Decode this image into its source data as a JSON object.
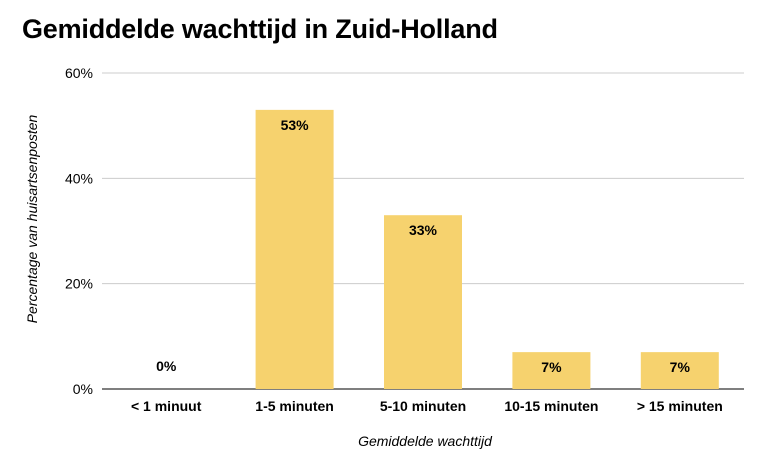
{
  "chart_data": {
    "type": "bar",
    "title": "Gemiddelde wachttijd in Zuid-Holland",
    "xlabel": "Gemiddelde wachttijd",
    "ylabel": "Percentage van huisartsenposten",
    "categories": [
      "< 1 minuut",
      "1-5 minuten",
      "5-10 minuten",
      "10-15 minuten",
      "> 15 minuten"
    ],
    "values": [
      0,
      53,
      33,
      7,
      7
    ],
    "value_labels": [
      "0%",
      "53%",
      "33%",
      "7%",
      "7%"
    ],
    "ylim": [
      0,
      60
    ],
    "yticks": [
      0,
      20,
      40,
      60
    ],
    "ytick_labels": [
      "0%",
      "20%",
      "40%",
      "60%"
    ],
    "grid": true,
    "legend": "none",
    "bar_color": "#f6d26e"
  }
}
